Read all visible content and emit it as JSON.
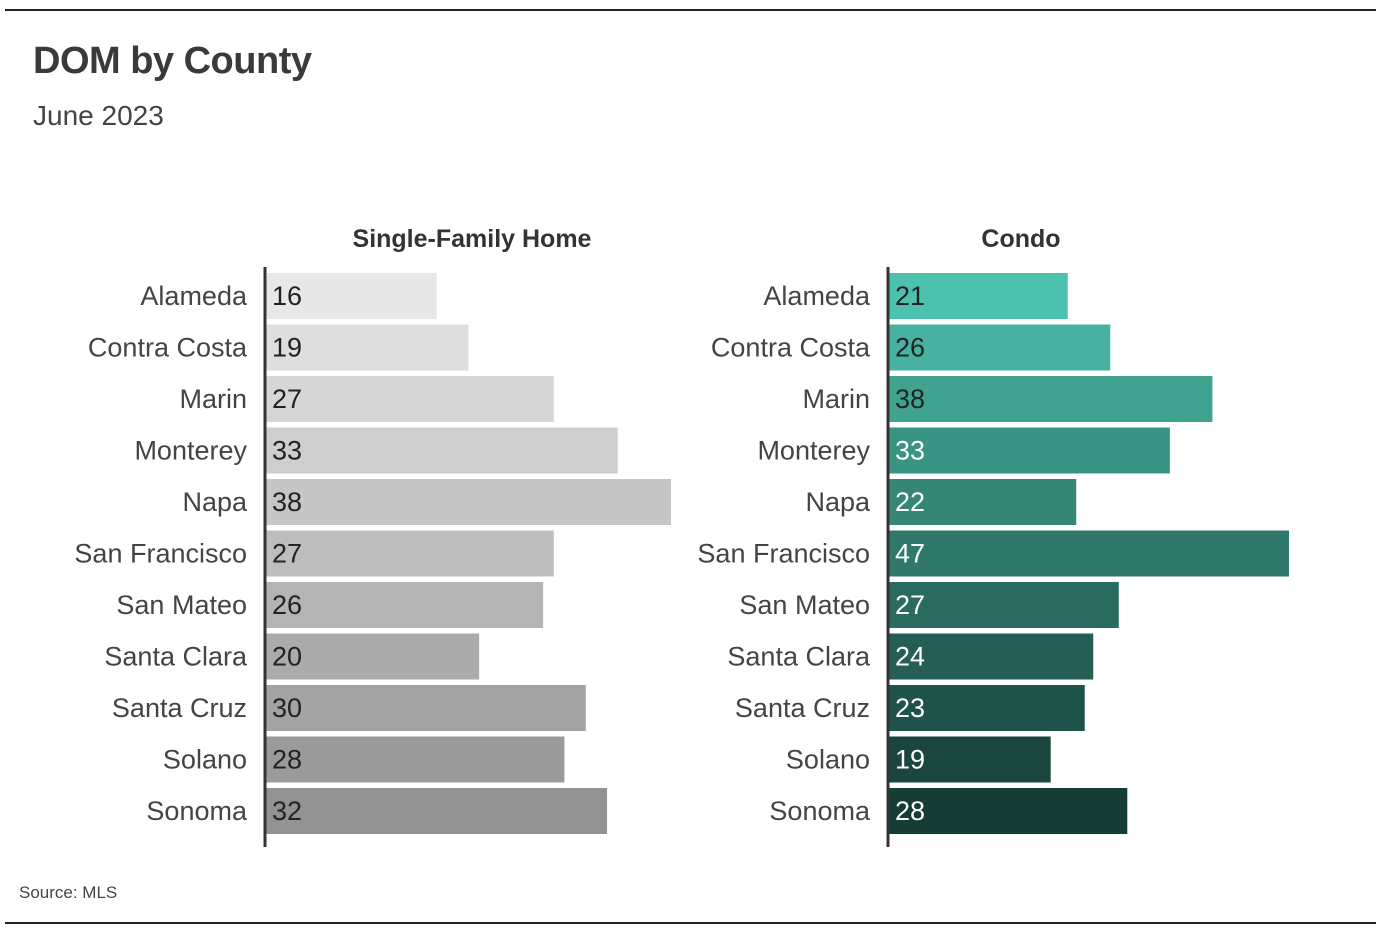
{
  "title": "DOM by County",
  "subtitle": "June 2023",
  "source": "Source: MLS",
  "chart_data": [
    {
      "type": "bar",
      "orientation": "horizontal",
      "title": "Single-Family Home",
      "categories": [
        "Alameda",
        "Contra Costa",
        "Marin",
        "Monterey",
        "Napa",
        "San Francisco",
        "San Mateo",
        "Santa Clara",
        "Santa Cruz",
        "Solano",
        "Sonoma"
      ],
      "values": [
        16,
        19,
        27,
        33,
        38,
        27,
        26,
        20,
        30,
        28,
        32
      ],
      "xlim": [
        0,
        38
      ],
      "colors": [
        "#e6e7e6",
        "#dedede",
        "#d6d6d6",
        "#cecece",
        "#c6c6c6",
        "#bdbdbd",
        "#b4b4b4",
        "#ababab",
        "#a3a3a3",
        "#9a9a9a",
        "#929292"
      ],
      "value_label_color": "#222222"
    },
    {
      "type": "bar",
      "orientation": "horizontal",
      "title": "Condo",
      "categories": [
        "Alameda",
        "Contra Costa",
        "Marin",
        "Monterey",
        "Napa",
        "San Francisco",
        "San Mateo",
        "Santa Clara",
        "Santa Cruz",
        "Solano",
        "Sonoma"
      ],
      "values": [
        21,
        26,
        38,
        33,
        22,
        47,
        27,
        24,
        23,
        19,
        28
      ],
      "xlim": [
        0,
        47
      ],
      "colors": [
        "#4cc1ae",
        "#46b29f",
        "#40a390",
        "#3a9483",
        "#358677",
        "#2f786b",
        "#2a6b5f",
        "#245e54",
        "#1f5249",
        "#1a463f",
        "#163c36"
      ],
      "value_label_colors": [
        "#222222",
        "#222222",
        "#222222",
        "#ffffff",
        "#ffffff",
        "#ffffff",
        "#ffffff",
        "#ffffff",
        "#ffffff",
        "#ffffff",
        "#ffffff"
      ]
    }
  ]
}
